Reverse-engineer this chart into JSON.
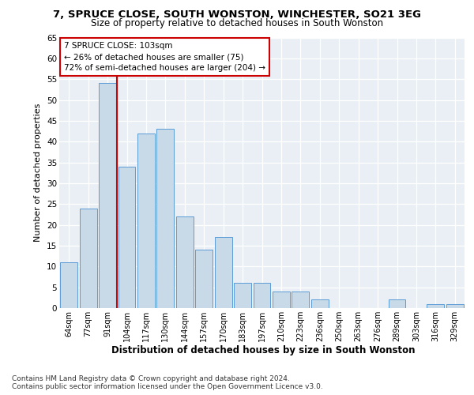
{
  "title1": "7, SPRUCE CLOSE, SOUTH WONSTON, WINCHESTER, SO21 3EG",
  "title2": "Size of property relative to detached houses in South Wonston",
  "xlabel": "Distribution of detached houses by size in South Wonston",
  "ylabel": "Number of detached properties",
  "categories": [
    "64sqm",
    "77sqm",
    "91sqm",
    "104sqm",
    "117sqm",
    "130sqm",
    "144sqm",
    "157sqm",
    "170sqm",
    "183sqm",
    "197sqm",
    "210sqm",
    "223sqm",
    "236sqm",
    "250sqm",
    "263sqm",
    "276sqm",
    "289sqm",
    "303sqm",
    "316sqm",
    "329sqm"
  ],
  "values": [
    11,
    24,
    54,
    34,
    42,
    43,
    22,
    14,
    17,
    6,
    6,
    4,
    4,
    2,
    0,
    0,
    0,
    2,
    0,
    1,
    1
  ],
  "bar_color": "#c8d9e8",
  "bar_edge_color": "#5b9bd5",
  "marker_line_color": "#cc0000",
  "annotation_line1": "7 SPRUCE CLOSE: 103sqm",
  "annotation_line2": "← 26% of detached houses are smaller (75)",
  "annotation_line3": "72% of semi-detached houses are larger (204) →",
  "annotation_box_edge": "#cc0000",
  "footer1": "Contains HM Land Registry data © Crown copyright and database right 2024.",
  "footer2": "Contains public sector information licensed under the Open Government Licence v3.0.",
  "ylim": [
    0,
    65
  ],
  "yticks": [
    0,
    5,
    10,
    15,
    20,
    25,
    30,
    35,
    40,
    45,
    50,
    55,
    60,
    65
  ],
  "bg_color": "#eaeff5",
  "fig_bg_color": "#ffffff"
}
